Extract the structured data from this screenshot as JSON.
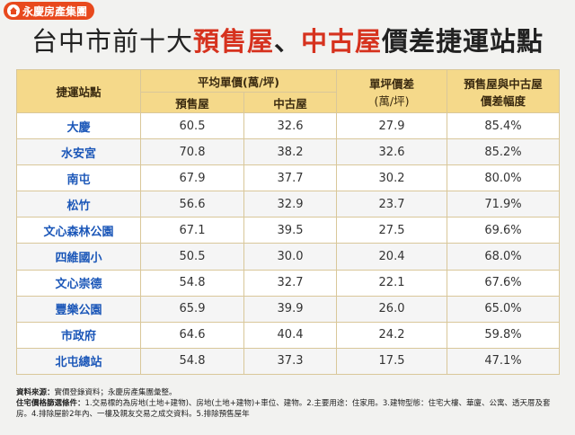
{
  "logo": {
    "text": "永慶房產集團"
  },
  "title": {
    "part1": "台中市前十大",
    "part2": "預售屋",
    "part3": "、",
    "part4": "中古屋",
    "part5": "價差捷運站點"
  },
  "table": {
    "headers": {
      "station": "捷運站點",
      "avg_price": "平均單價",
      "avg_price_unit": "(萬/坪)",
      "presale": "預售屋",
      "used": "中古屋",
      "diff": "單坪價差",
      "diff_unit": "(萬/坪)",
      "gap_line1": "預售屋與中古屋",
      "gap_line2": "價差幅度"
    },
    "rows": [
      {
        "station": "大慶",
        "presale": "60.5",
        "used": "32.6",
        "diff": "27.9",
        "gap": "85.4%"
      },
      {
        "station": "水安宮",
        "presale": "70.8",
        "used": "38.2",
        "diff": "32.6",
        "gap": "85.2%"
      },
      {
        "station": "南屯",
        "presale": "67.9",
        "used": "37.7",
        "diff": "30.2",
        "gap": "80.0%"
      },
      {
        "station": "松竹",
        "presale": "56.6",
        "used": "32.9",
        "diff": "23.7",
        "gap": "71.9%"
      },
      {
        "station": "文心森林公園",
        "presale": "67.1",
        "used": "39.5",
        "diff": "27.5",
        "gap": "69.6%"
      },
      {
        "station": "四維國小",
        "presale": "50.5",
        "used": "30.0",
        "diff": "20.4",
        "gap": "68.0%"
      },
      {
        "station": "文心崇德",
        "presale": "54.8",
        "used": "32.7",
        "diff": "22.1",
        "gap": "67.6%"
      },
      {
        "station": "豐樂公園",
        "presale": "65.9",
        "used": "39.9",
        "diff": "26.0",
        "gap": "65.0%"
      },
      {
        "station": "市政府",
        "presale": "64.6",
        "used": "40.4",
        "diff": "24.2",
        "gap": "59.8%"
      },
      {
        "station": "北屯總站",
        "presale": "54.8",
        "used": "37.3",
        "diff": "17.5",
        "gap": "47.1%"
      }
    ]
  },
  "footer": {
    "source_label": "資料來源：",
    "source_text": "實價登錄資料；永慶房產集團彙整。",
    "criteria_label": "住宅價格篩選條件：",
    "criteria_text": "1.交易標的為房地(土地+建物)、房地(土地+建物)+車位、建物。2.主要用途：住家用。3.建物型態：住宅大樓、華廈、公寓、透天厝及套房。4.排除屋齡2年內、一樓及親友交易之成交資料。5.排除預售屋年"
  }
}
